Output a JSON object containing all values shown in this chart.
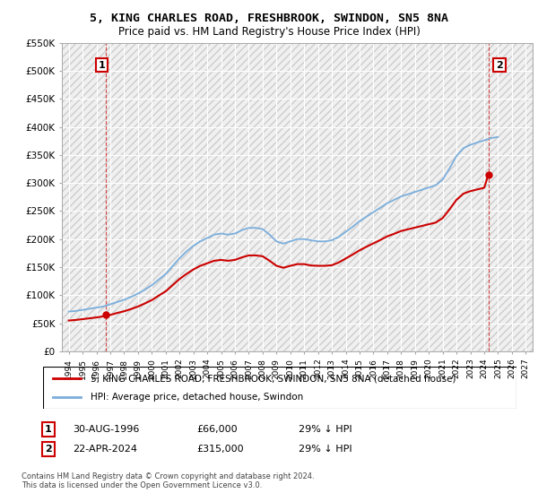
{
  "title": "5, KING CHARLES ROAD, FRESHBROOK, SWINDON, SN5 8NA",
  "subtitle": "Price paid vs. HM Land Registry's House Price Index (HPI)",
  "ylim": [
    0,
    550000
  ],
  "yticks": [
    0,
    50000,
    100000,
    150000,
    200000,
    250000,
    300000,
    350000,
    400000,
    450000,
    500000,
    550000
  ],
  "ytick_labels": [
    "£0",
    "£50K",
    "£100K",
    "£150K",
    "£200K",
    "£250K",
    "£300K",
    "£350K",
    "£400K",
    "£450K",
    "£500K",
    "£550K"
  ],
  "xmin": 1993.5,
  "xmax": 2027.5,
  "sale1_x": 1996.66,
  "sale1_y": 66000,
  "sale2_x": 2024.31,
  "sale2_y": 315000,
  "sale1_label": "1",
  "sale2_label": "2",
  "sale1_date": "30-AUG-1996",
  "sale1_price": "£66,000",
  "sale1_hpi": "29% ↓ HPI",
  "sale2_date": "22-APR-2024",
  "sale2_price": "£315,000",
  "sale2_hpi": "29% ↓ HPI",
  "legend_label1": "5, KING CHARLES ROAD, FRESHBROOK, SWINDON, SN5 8NA (detached house)",
  "legend_label2": "HPI: Average price, detached house, Swindon",
  "footnote": "Contains HM Land Registry data © Crown copyright and database right 2024.\nThis data is licensed under the Open Government Licence v3.0.",
  "line_color": "#cc0000",
  "hpi_color": "#7aaedc",
  "grid_color": "#cccccc",
  "hpi_data_x": [
    1994,
    1994.5,
    1995,
    1995.5,
    1996,
    1996.5,
    1997,
    1997.5,
    1998,
    1998.5,
    1999,
    1999.5,
    2000,
    2000.5,
    2001,
    2001.5,
    2002,
    2002.5,
    2003,
    2003.5,
    2004,
    2004.5,
    2005,
    2005.5,
    2006,
    2006.5,
    2007,
    2007.5,
    2008,
    2008.5,
    2009,
    2009.5,
    2010,
    2010.5,
    2011,
    2011.5,
    2012,
    2012.5,
    2013,
    2013.5,
    2014,
    2014.5,
    2015,
    2015.5,
    2016,
    2016.5,
    2017,
    2017.5,
    2018,
    2018.5,
    2019,
    2019.5,
    2020,
    2020.5,
    2021,
    2021.5,
    2022,
    2022.5,
    2023,
    2023.5,
    2024,
    2024.5,
    2025
  ],
  "hpi_data_y": [
    71000,
    72000,
    74000,
    76000,
    78000,
    80000,
    84000,
    88000,
    92000,
    97000,
    103000,
    110000,
    118000,
    128000,
    138000,
    152000,
    166000,
    178000,
    188000,
    196000,
    202000,
    208000,
    210000,
    208000,
    210000,
    216000,
    220000,
    220000,
    218000,
    208000,
    196000,
    192000,
    196000,
    200000,
    200000,
    198000,
    196000,
    196000,
    198000,
    204000,
    213000,
    222000,
    232000,
    240000,
    248000,
    256000,
    264000,
    270000,
    276000,
    280000,
    284000,
    288000,
    292000,
    296000,
    306000,
    326000,
    348000,
    362000,
    368000,
    372000,
    376000,
    380000,
    382000
  ],
  "red_data_x": [
    1994,
    1994.5,
    1995,
    1995.5,
    1996,
    1996.5,
    1997,
    1997.5,
    1998,
    1998.5,
    1999,
    1999.5,
    2000,
    2000.5,
    2001,
    2001.5,
    2002,
    2002.5,
    2003,
    2003.5,
    2004,
    2004.5,
    2005,
    2005.5,
    2006,
    2006.5,
    2007,
    2007.5,
    2008,
    2008.5,
    2009,
    2009.5,
    2010,
    2010.5,
    2011,
    2011.5,
    2012,
    2012.5,
    2013,
    2013.5,
    2014,
    2014.5,
    2015,
    2015.5,
    2016,
    2016.5,
    2017,
    2017.5,
    2018,
    2018.5,
    2019,
    2019.5,
    2020,
    2020.5,
    2021,
    2021.5,
    2022,
    2022.5,
    2023,
    2023.5,
    2024,
    2024.31
  ],
  "red_data_y": [
    55000,
    56000,
    57500,
    59000,
    60500,
    62500,
    65000,
    68500,
    71500,
    75500,
    80000,
    85500,
    91500,
    99500,
    107000,
    118000,
    129000,
    138000,
    146000,
    152500,
    157000,
    161500,
    163000,
    161500,
    163000,
    167500,
    171000,
    171000,
    169500,
    161500,
    152500,
    149000,
    152500,
    155500,
    155500,
    153000,
    152500,
    152500,
    153500,
    158500,
    165500,
    172500,
    180000,
    186500,
    192500,
    198500,
    205000,
    209500,
    214500,
    217500,
    220500,
    223500,
    226500,
    229500,
    237500,
    253000,
    270000,
    281000,
    285500,
    288500,
    291500,
    315000
  ]
}
